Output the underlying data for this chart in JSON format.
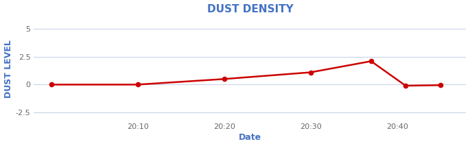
{
  "title": "DUST DENSITY",
  "xlabel": "Date",
  "ylabel": "DUST LEVEL",
  "title_color": "#4472C4",
  "label_color": "#4472C4",
  "tick_color": "#666666",
  "line_color": "#CC0000",
  "marker_color": "#CC0000",
  "grid_color": "#C8D4E8",
  "background_color": "#FFFFFF",
  "x_values": [
    0,
    10,
    20,
    30,
    37,
    41,
    45
  ],
  "y_values": [
    0.0,
    0.0,
    0.5,
    1.1,
    2.1,
    -0.1,
    -0.05
  ],
  "x_tick_positions": [
    10,
    20,
    30,
    40
  ],
  "x_tick_labels": [
    "20:10",
    "20:20",
    "20:30",
    "20:40"
  ],
  "ylim": [
    -3.2,
    6.0
  ],
  "yticks": [
    -2.5,
    0,
    2.5,
    5
  ],
  "xlim": [
    -2,
    48
  ],
  "title_fontsize": 11,
  "axis_label_fontsize": 9,
  "tick_fontsize": 8,
  "linewidth": 1.8,
  "markersize": 4.5
}
